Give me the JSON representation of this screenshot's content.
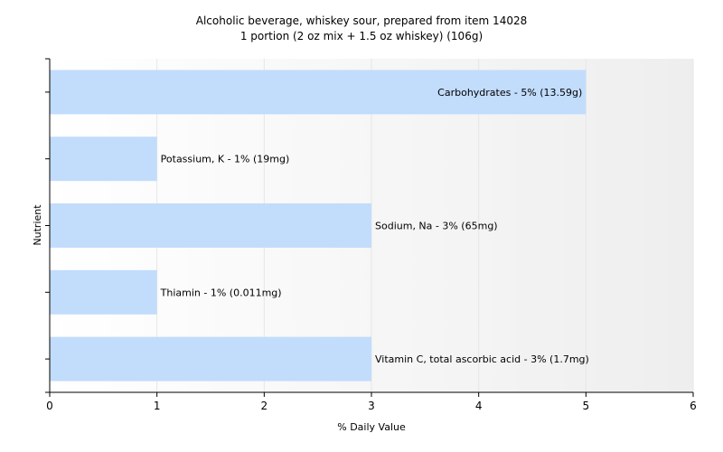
{
  "chart_data": {
    "type": "bar",
    "orientation": "horizontal",
    "title": "Alcoholic beverage, whiskey sour, prepared from item 14028",
    "subtitle": "1 portion (2 oz mix + 1.5 oz whiskey) (106g)",
    "xlabel": "% Daily Value",
    "ylabel": "Nutrient",
    "xlim": [
      0,
      6
    ],
    "xticks": [
      "0",
      "1",
      "2",
      "3",
      "4",
      "5",
      "6"
    ],
    "grid": true,
    "colors": {
      "bar": "#c2dcfc",
      "axis": "#000000",
      "grid": "#e6e6e6"
    },
    "categories": [
      "Carbohydrates",
      "Potassium, K",
      "Sodium, Na",
      "Thiamin",
      "Vitamin C, total ascorbic acid"
    ],
    "values": [
      5,
      1,
      3,
      1,
      3
    ],
    "data_labels": [
      "Carbohydrates - 5% (13.59g)",
      "Potassium, K - 1% (19mg)",
      "Sodium, Na - 3% (65mg)",
      "Thiamin - 1% (0.011mg)",
      "Vitamin C, total ascorbic acid - 3% (1.7mg)"
    ]
  }
}
